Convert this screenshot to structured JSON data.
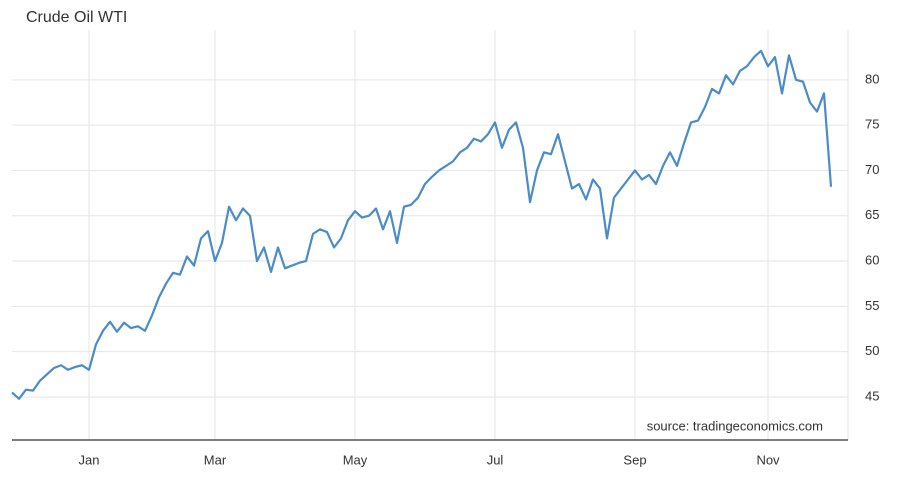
{
  "chart_data": {
    "type": "line",
    "title": "Crude Oil WTI",
    "annotation": "source: tradingeconomics.com",
    "categories": [
      null,
      null,
      null,
      null,
      null,
      null,
      null,
      null,
      null,
      null,
      null,
      "Jan",
      null,
      null,
      null,
      null,
      null,
      null,
      null,
      null,
      null,
      null,
      null,
      null,
      null,
      null,
      null,
      null,
      null,
      "Mar",
      null,
      null,
      null,
      null,
      null,
      null,
      null,
      null,
      null,
      null,
      null,
      null,
      null,
      null,
      null,
      null,
      null,
      null,
      null,
      "May",
      null,
      null,
      null,
      null,
      null,
      null,
      null,
      null,
      null,
      null,
      null,
      null,
      null,
      null,
      null,
      null,
      null,
      null,
      null,
      "Jul",
      null,
      null,
      null,
      null,
      null,
      null,
      null,
      null,
      null,
      null,
      null,
      null,
      null,
      null,
      null,
      null,
      null,
      null,
      null,
      "Sep",
      null,
      null,
      null,
      null,
      null,
      null,
      null,
      null,
      null,
      null,
      null,
      null,
      null,
      null,
      null,
      null,
      null,
      null,
      "Nov",
      null,
      null,
      null,
      null,
      null,
      null,
      null,
      null,
      null
    ],
    "values": [
      45.5,
      44.8,
      45.8,
      45.7,
      46.8,
      47.5,
      48.2,
      48.5,
      48,
      48.3,
      48.5,
      48,
      50.8,
      52.3,
      53.3,
      52.2,
      53.2,
      52.6,
      52.8,
      52.3,
      54,
      56,
      57.5,
      58.7,
      58.5,
      60.5,
      59.5,
      62.5,
      63.3,
      60,
      62,
      66,
      64.5,
      65.8,
      65,
      60,
      61.5,
      58.8,
      61.5,
      59.2,
      59.5,
      59.8,
      60,
      63,
      63.5,
      63.2,
      61.5,
      62.5,
      64.5,
      65.5,
      64.8,
      65,
      65.8,
      63.5,
      65.5,
      62,
      66,
      66.2,
      67,
      68.5,
      69.3,
      70,
      70.5,
      71,
      72,
      72.5,
      73.5,
      73.2,
      74,
      75.3,
      72.5,
      74.5,
      75.3,
      72.5,
      66.5,
      70,
      72,
      71.8,
      74,
      71,
      68,
      68.5,
      66.8,
      69,
      68,
      62.5,
      67,
      68,
      69,
      70,
      69,
      69.5,
      68.5,
      70.5,
      72,
      70.5,
      73,
      75.3,
      75.5,
      77,
      79,
      78.5,
      80.5,
      79.5,
      81,
      81.5,
      82.5,
      83.2,
      81.5,
      82.5,
      78.5,
      82.7,
      80,
      79.8,
      77.5,
      76.5,
      78.5,
      68.2
    ],
    "color": "#4a8cc7",
    "ylim": [
      40.25,
      85.5
    ],
    "yticks": [
      45,
      50,
      55,
      60,
      65,
      70,
      75,
      80
    ],
    "grid": true
  }
}
